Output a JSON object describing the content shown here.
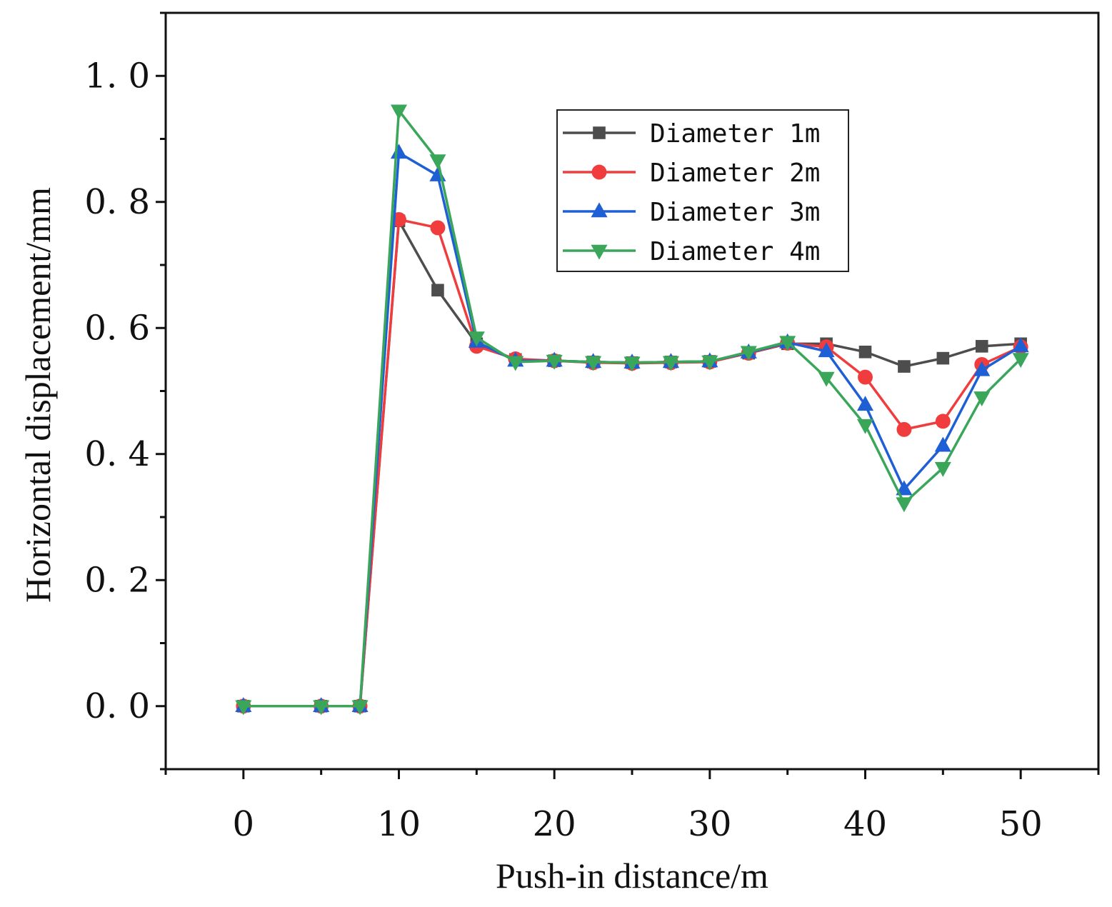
{
  "chart_data": {
    "type": "line",
    "title": "",
    "xlabel": "Push-in distance/m",
    "ylabel": "Horizontal displacement/mm",
    "xlim": [
      -5,
      55
    ],
    "ylim": [
      -0.1,
      1.1
    ],
    "xticks": [
      0,
      10,
      20,
      30,
      40,
      50
    ],
    "xtick_labels": [
      "0",
      "10",
      "20",
      "30",
      "40",
      "50"
    ],
    "yticks": [
      0.0,
      0.2,
      0.4,
      0.6,
      0.8,
      1.0
    ],
    "ytick_labels": [
      "0. 0",
      "0. 2",
      "0. 4",
      "0. 6",
      "0. 8",
      "1. 0"
    ],
    "grid": false,
    "legend_position": "top-right",
    "x": [
      0,
      5,
      7.5,
      10,
      12.5,
      15,
      17.5,
      20,
      22.5,
      25,
      27.5,
      30,
      32.5,
      35,
      37.5,
      40,
      42.5,
      45,
      47.5,
      50
    ],
    "series": [
      {
        "name": "Diameter 1m",
        "color": "#4d4d4d",
        "marker": "square",
        "values": [
          0,
          0,
          0,
          0.77,
          0.66,
          0.575,
          0.55,
          0.548,
          0.546,
          0.545,
          0.546,
          0.547,
          0.56,
          0.575,
          0.575,
          0.562,
          0.539,
          0.552,
          0.571,
          0.575
        ]
      },
      {
        "name": "Diameter 2m",
        "color": "#f03c3c",
        "marker": "circle",
        "values": [
          0,
          0,
          0,
          0.772,
          0.759,
          0.571,
          0.551,
          0.548,
          0.545,
          0.544,
          0.545,
          0.546,
          0.56,
          0.576,
          0.57,
          0.522,
          0.439,
          0.452,
          0.542,
          0.57
        ]
      },
      {
        "name": "Diameter 3m",
        "color": "#1f5fd6",
        "marker": "triangle-up",
        "values": [
          0,
          0,
          0,
          0.878,
          0.842,
          0.578,
          0.548,
          0.548,
          0.546,
          0.545,
          0.546,
          0.547,
          0.561,
          0.577,
          0.563,
          0.478,
          0.344,
          0.413,
          0.533,
          0.571
        ]
      },
      {
        "name": "Diameter 4m",
        "color": "#3aa65a",
        "marker": "triangle-down",
        "values": [
          0,
          0,
          0,
          0.945,
          0.866,
          0.585,
          0.546,
          0.548,
          0.546,
          0.545,
          0.546,
          0.547,
          0.562,
          0.578,
          0.521,
          0.446,
          0.322,
          0.378,
          0.49,
          0.551
        ]
      }
    ]
  }
}
